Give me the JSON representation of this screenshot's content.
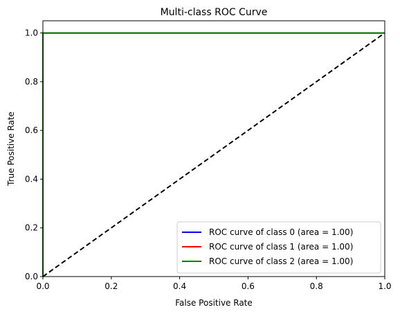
{
  "chart_data": {
    "type": "line",
    "title": "Multi-class ROC Curve",
    "xlabel": "False Positive Rate",
    "ylabel": "True Positive Rate",
    "xlim": [
      0.0,
      1.0
    ],
    "ylim": [
      0.0,
      1.05
    ],
    "x_ticks": [
      "0.0",
      "0.2",
      "0.4",
      "0.6",
      "0.8",
      "1.0"
    ],
    "y_ticks": [
      "0.0",
      "0.2",
      "0.4",
      "0.6",
      "0.8",
      "1.0"
    ],
    "grid": false,
    "legend_position": "lower-right",
    "series": [
      {
        "name": "ROC curve of class 0 (area = 1.00)",
        "color": "#0000ff",
        "x": [
          0.0,
          0.0,
          1.0
        ],
        "y": [
          0.0,
          1.0,
          1.0
        ]
      },
      {
        "name": "ROC curve of class 1 (area = 1.00)",
        "color": "#ff0000",
        "x": [
          0.0,
          0.0,
          1.0
        ],
        "y": [
          0.0,
          1.0,
          1.0
        ]
      },
      {
        "name": "ROC curve of class 2 (area = 1.00)",
        "color": "#008000",
        "x": [
          0.0,
          0.0,
          1.0
        ],
        "y": [
          0.0,
          1.0,
          1.0
        ]
      }
    ],
    "reference_line": {
      "x": [
        0.0,
        1.0
      ],
      "y": [
        0.0,
        1.0
      ],
      "color": "#000000",
      "style": "dashed"
    }
  }
}
